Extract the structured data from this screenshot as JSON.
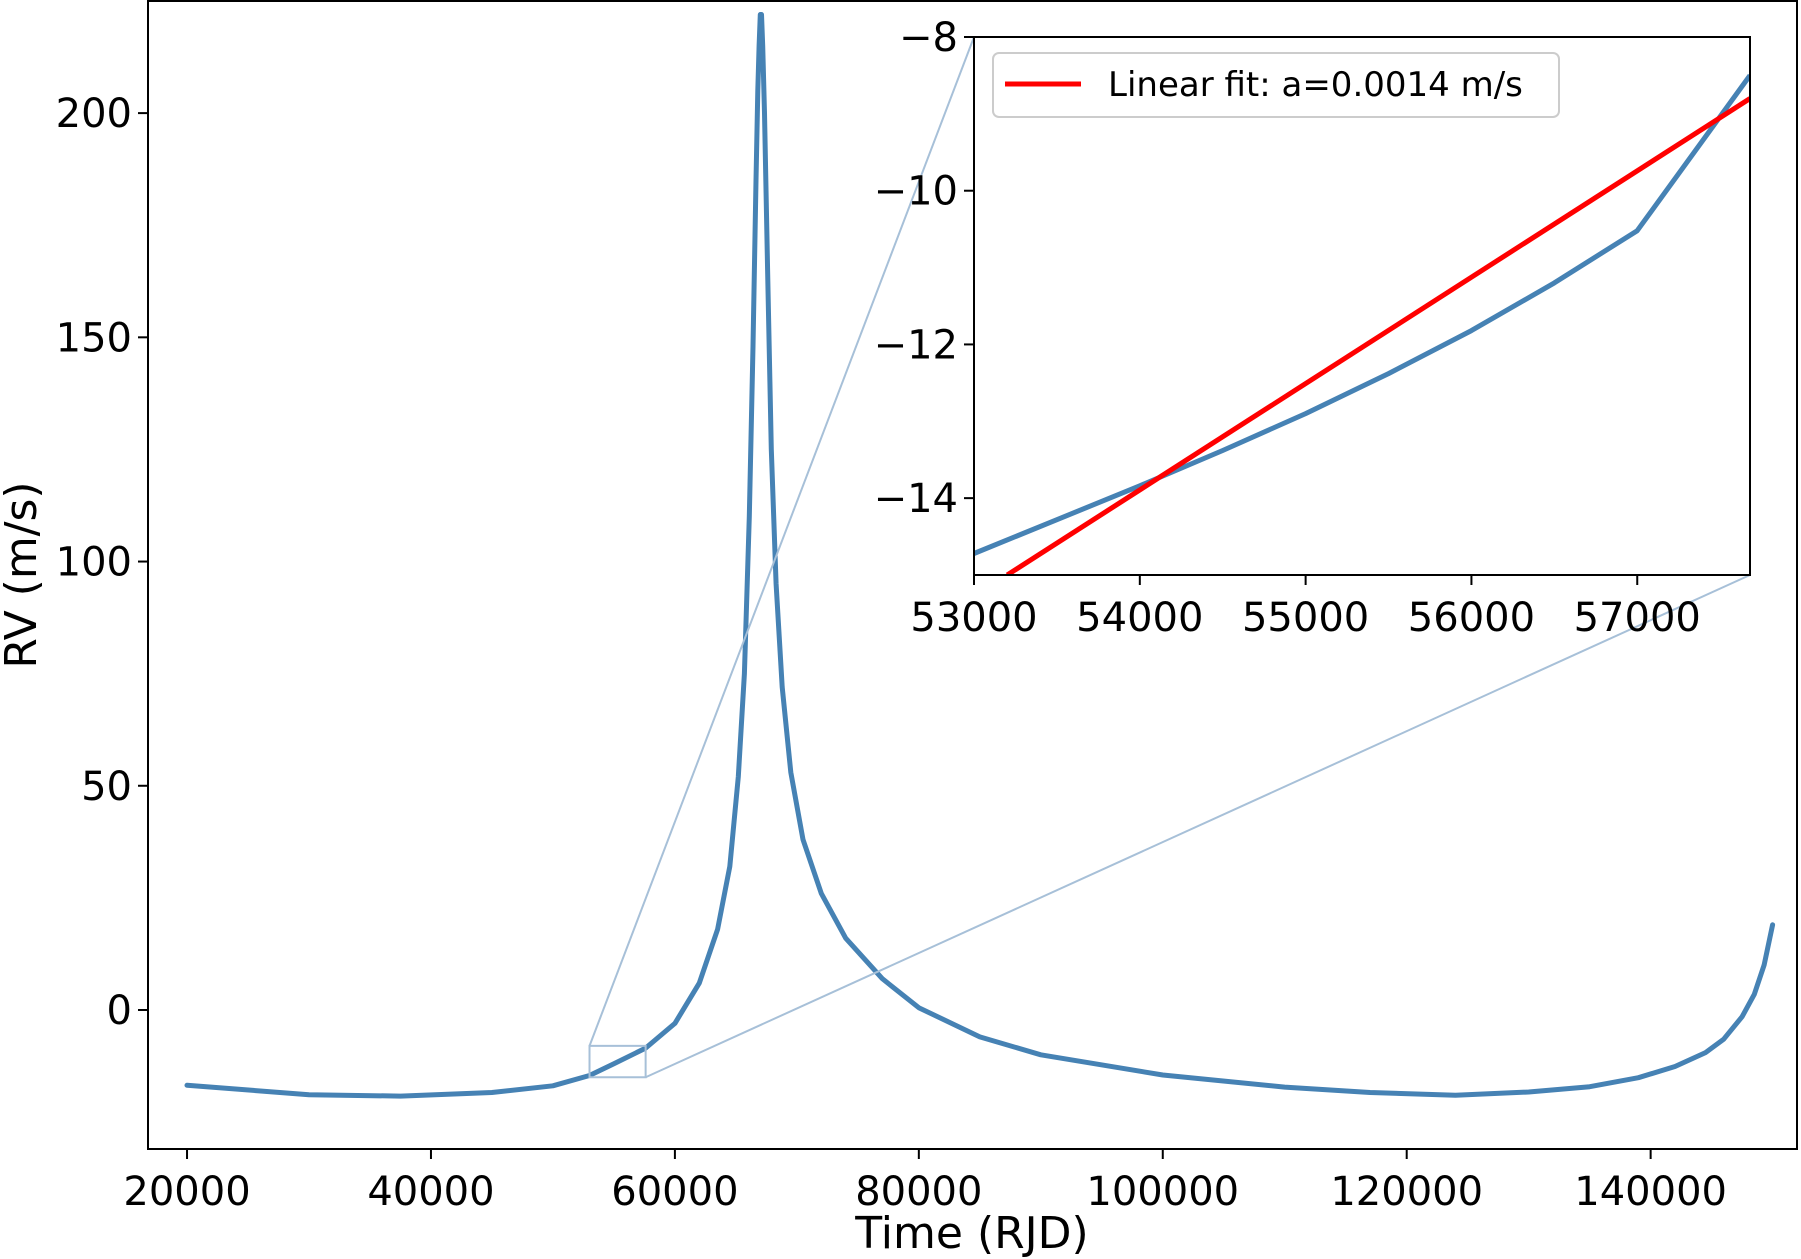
{
  "chart_data": [
    {
      "type": "line",
      "xlabel": "Time (RJD)",
      "ylabel": "RV (m/s)",
      "xlim": [
        16800,
        152000
      ],
      "ylim": [
        -31,
        225
      ],
      "xticks": [
        20000,
        40000,
        60000,
        80000,
        100000,
        120000,
        140000
      ],
      "yticks": [
        0,
        50,
        100,
        150,
        200
      ],
      "grid": false,
      "series": [
        {
          "color": "#4682b4",
          "x": [
            20000,
            30000,
            37500,
            45000,
            50000,
            53000,
            55000,
            57600,
            60000,
            62000,
            63500,
            64500,
            65200,
            65700,
            66100,
            66400,
            66650,
            66800,
            66900,
            67000,
            67100,
            67200,
            67350,
            67600,
            67900,
            68300,
            68800,
            69500,
            70500,
            72000,
            74000,
            77000,
            80000,
            85000,
            90000,
            100000,
            110000,
            117000,
            124000,
            130000,
            135000,
            139000,
            142000,
            144500,
            146000,
            147500,
            148500,
            149300,
            150000
          ],
          "y": [
            -16.8,
            -18.9,
            -19.2,
            -18.4,
            -16.9,
            -14.6,
            -12.0,
            -8.5,
            -3.0,
            6.0,
            18.0,
            32.0,
            52.0,
            75.0,
            110.0,
            148.0,
            185.0,
            205.0,
            215.0,
            222.0,
            222.0,
            215.0,
            200.0,
            165.0,
            125.0,
            95.0,
            72.0,
            53.0,
            38.0,
            26.0,
            16.0,
            7.0,
            0.5,
            -6.0,
            -10.0,
            -14.5,
            -17.2,
            -18.4,
            -19.0,
            -18.3,
            -17.1,
            -15.1,
            -12.6,
            -9.5,
            -6.5,
            -1.5,
            3.5,
            10.0,
            19.0
          ]
        }
      ],
      "zoom_box": {
        "x": [
          53000,
          57600
        ],
        "y": [
          -15,
          -8
        ]
      }
    },
    {
      "type": "line",
      "xlim": [
        53000,
        57680
      ],
      "ylim": [
        -15,
        -8
      ],
      "xticks": [
        53000,
        54000,
        55000,
        56000,
        57000
      ],
      "yticks": [
        -8,
        -10,
        -12,
        -14
      ],
      "grid": false,
      "legend": "top-left",
      "series": [
        {
          "color": "#4682b4",
          "x": [
            53000,
            53500,
            54000,
            54500,
            55000,
            55500,
            56000,
            56500,
            57000,
            57680
          ],
          "y": [
            -14.72,
            -14.28,
            -13.84,
            -13.38,
            -12.9,
            -12.38,
            -11.82,
            -11.2,
            -10.52,
            -8.5
          ]
        },
        {
          "name": "Linear fit: a=0.0014 m/s",
          "color": "#ff0000",
          "x": [
            53200,
            57680
          ],
          "y": [
            -15.0,
            -8.8
          ]
        }
      ]
    }
  ]
}
